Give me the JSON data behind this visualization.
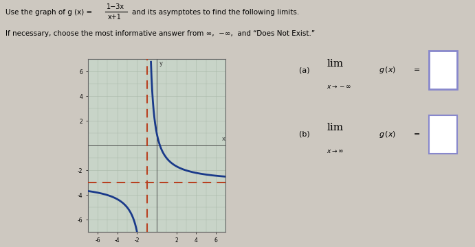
{
  "bg_color": "#cdc8c0",
  "graph_bg": "#c8d4c8",
  "curve_color": "#1a3a8a",
  "vasymptote_color": "#b84020",
  "hasymptote_color": "#b84020",
  "vasymptote_x": -1,
  "hasymptote_y": -3,
  "xmin": -7,
  "xmax": 7,
  "ymin": -7,
  "ymax": 7,
  "xticks": [
    -6,
    -4,
    -2,
    2,
    4,
    6
  ],
  "yticks": [
    -6,
    -4,
    -2,
    2,
    4,
    6
  ],
  "ans_bg": "#e8e8e8",
  "ans_border": "#aaaaaa",
  "box_border": "#8888cc"
}
